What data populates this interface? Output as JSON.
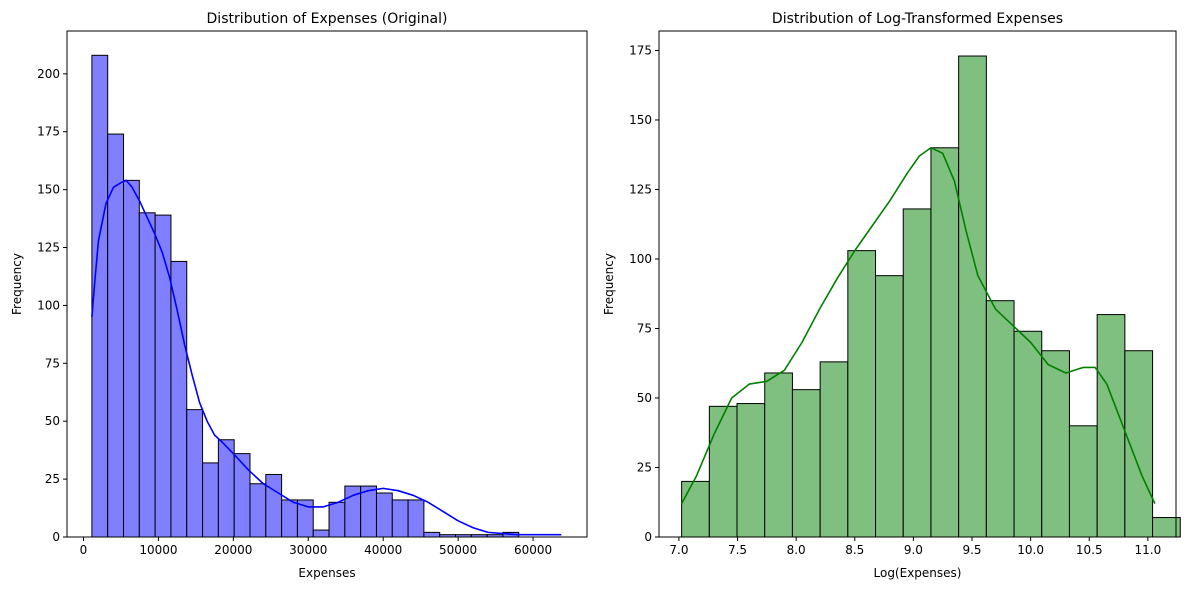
{
  "chart_data": [
    {
      "type": "bar",
      "title": "Distribution of Expenses (Original)",
      "xlabel": "Expenses",
      "ylabel": "Frequency",
      "bar_color": "#7f7fff",
      "edge_color": "#000000",
      "kde_color": "#0000ff",
      "xlim": [
        -2200,
        67200
      ],
      "ylim": [
        0,
        218.5
      ],
      "xticks": [
        0,
        10000,
        20000,
        30000,
        40000,
        50000,
        60000
      ],
      "yticks": [
        0,
        25,
        50,
        75,
        100,
        125,
        150,
        175,
        200
      ],
      "bin_start": 1122,
      "bin_width": 2110,
      "values": [
        208,
        174,
        154,
        140,
        139,
        119,
        55,
        32,
        42,
        36,
        23,
        27,
        16,
        16,
        3,
        15,
        22,
        22,
        19,
        16,
        16,
        2,
        1,
        1,
        1,
        1,
        2
      ],
      "kde": {
        "x": [
          1122,
          1500,
          2000,
          3000,
          4000,
          5000,
          5700,
          6500,
          7500,
          8500,
          9500,
          10500,
          11500,
          12500,
          13500,
          14500,
          15500,
          16500,
          17500,
          18500,
          20000,
          22000,
          24000,
          26000,
          28000,
          30000,
          32000,
          34000,
          36000,
          38000,
          40000,
          42000,
          44000,
          46000,
          48000,
          50000,
          52000,
          54000,
          56000,
          58000,
          60000,
          62000,
          63770
        ],
        "y": [
          95,
          110,
          128,
          144,
          151,
          153,
          154,
          151,
          145,
          138,
          131,
          123,
          112,
          98,
          83,
          70,
          58,
          50,
          44,
          41,
          36,
          29,
          23,
          19,
          15,
          13,
          13,
          15,
          18,
          20,
          21,
          20,
          18,
          15,
          11,
          7,
          4,
          2,
          1.5,
          1,
          1,
          1,
          1
        ]
      }
    },
    {
      "type": "bar",
      "title": "Distribution of Log-Transformed Expenses",
      "xlabel": "Log(Expenses)",
      "ylabel": "Frequency",
      "bar_color": "#7fbf7f",
      "edge_color": "#000000",
      "kde_color": "#008000",
      "xlim": [
        6.83,
        11.24
      ],
      "ylim": [
        0,
        182
      ],
      "xticks": [
        7.0,
        7.5,
        8.0,
        8.5,
        9.0,
        9.5,
        10.0,
        10.5,
        11.0
      ],
      "yticks": [
        0,
        25,
        50,
        75,
        100,
        125,
        150,
        175
      ],
      "bin_start": 7.023,
      "bin_width": 0.2363,
      "values": [
        20,
        47,
        48,
        59,
        53,
        63,
        103,
        94,
        118,
        140,
        173,
        85,
        74,
        67,
        40,
        80,
        67,
        7
      ],
      "kde": {
        "x": [
          7.023,
          7.15,
          7.3,
          7.45,
          7.6,
          7.75,
          7.9,
          8.05,
          8.2,
          8.35,
          8.5,
          8.65,
          8.8,
          8.95,
          9.05,
          9.15,
          9.25,
          9.35,
          9.45,
          9.55,
          9.7,
          9.85,
          10.0,
          10.15,
          10.3,
          10.45,
          10.55,
          10.65,
          10.75,
          10.85,
          10.95,
          11.06
        ],
        "y": [
          12,
          22,
          37,
          50,
          55,
          56,
          60,
          70,
          82,
          93,
          103,
          112,
          121,
          131,
          137,
          140,
          138,
          128,
          110,
          94,
          82,
          76,
          70,
          62,
          59,
          61,
          61,
          55,
          44,
          33,
          22,
          12
        ]
      }
    }
  ]
}
